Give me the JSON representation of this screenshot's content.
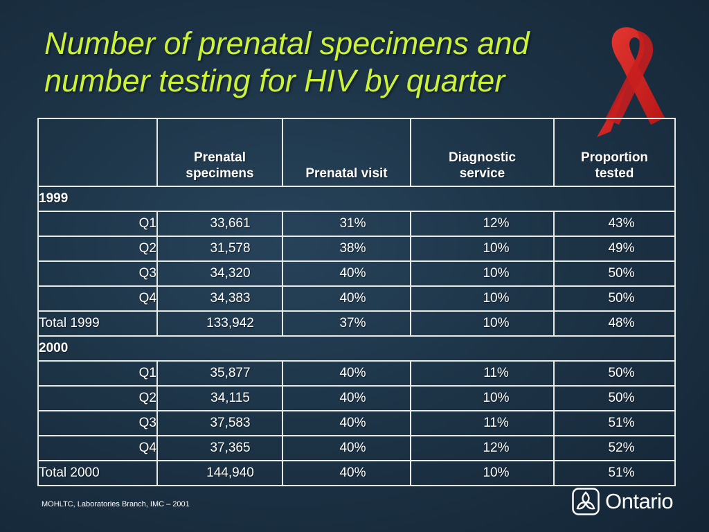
{
  "title": {
    "line1": "Number of prenatal specimens and",
    "line2": "number testing for HIV by quarter"
  },
  "table": {
    "headers": [
      "",
      "Prenatal specimens",
      "Prenatal visit",
      "Diagnostic service",
      "Proportion tested"
    ],
    "header_lines": {
      "col1": [
        "Prenatal",
        "specimens"
      ],
      "col2": [
        "Prenatal visit"
      ],
      "col3": [
        "Diagnostic",
        "service"
      ],
      "col4": [
        "Proportion",
        "tested"
      ]
    },
    "sections": [
      {
        "year": "1999",
        "rows": [
          {
            "label": "Q1",
            "specimens": "33,661",
            "visit": "31%",
            "diagnostic": "12%",
            "proportion": "43%"
          },
          {
            "label": "Q2",
            "specimens": "31,578",
            "visit": "38%",
            "diagnostic": "10%",
            "proportion": "49%"
          },
          {
            "label": "Q3",
            "specimens": "34,320",
            "visit": "40%",
            "diagnostic": "10%",
            "proportion": "50%"
          },
          {
            "label": "Q4",
            "specimens": "34,383",
            "visit": "40%",
            "diagnostic": "10%",
            "proportion": "50%"
          }
        ],
        "total": {
          "label": "Total 1999",
          "specimens": "133,942",
          "visit": "37%",
          "diagnostic": "10%",
          "proportion": "48%"
        }
      },
      {
        "year": "2000",
        "rows": [
          {
            "label": "Q1",
            "specimens": "35,877",
            "visit": "40%",
            "diagnostic": "11%",
            "proportion": "50%"
          },
          {
            "label": "Q2",
            "specimens": "34,115",
            "visit": "40%",
            "diagnostic": "10%",
            "proportion": "50%"
          },
          {
            "label": "Q3",
            "specimens": "37,583",
            "visit": "40%",
            "diagnostic": "11%",
            "proportion": "51%"
          },
          {
            "label": "Q4",
            "specimens": "37,365",
            "visit": "40%",
            "diagnostic": "12%",
            "proportion": "52%"
          }
        ],
        "total": {
          "label": "Total 2000",
          "specimens": "144,940",
          "visit": "40%",
          "diagnostic": "10%",
          "proportion": "51%"
        }
      }
    ]
  },
  "footer": {
    "source": "MOHLTC, Laboratories Branch, IMC – 2001"
  },
  "logo": {
    "text": "Ontario",
    "icon": "trillium-icon"
  },
  "decor": {
    "ribbon_icon": "red-ribbon-icon"
  },
  "colors": {
    "title": "#ccf23a",
    "ribbon": "#d42020",
    "table_border": "#e8ebe4",
    "background": "#1d3447"
  }
}
